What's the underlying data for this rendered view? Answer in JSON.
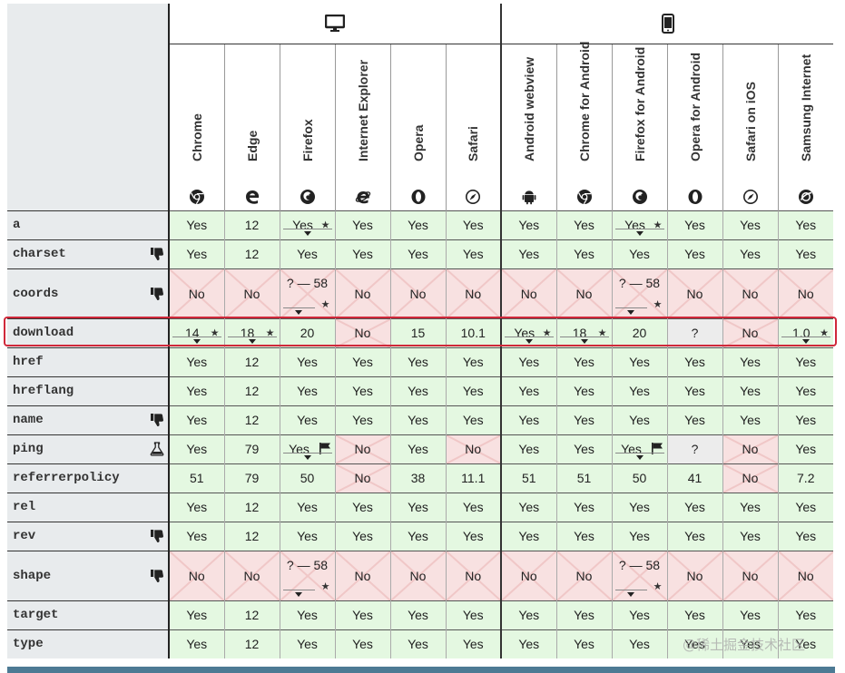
{
  "platforms": [
    {
      "name": "desktop-icon"
    },
    {
      "name": "mobile-icon"
    }
  ],
  "browsers": [
    {
      "label": "Chrome",
      "icon": "chrome-icon"
    },
    {
      "label": "Edge",
      "icon": "edge-icon"
    },
    {
      "label": "Firefox",
      "icon": "firefox-icon"
    },
    {
      "label": "Internet Explorer",
      "icon": "ie-icon"
    },
    {
      "label": "Opera",
      "icon": "opera-icon"
    },
    {
      "label": "Safari",
      "icon": "safari-icon"
    },
    {
      "label": "Android webview",
      "icon": "android-icon"
    },
    {
      "label": "Chrome for Android",
      "icon": "chrome-icon"
    },
    {
      "label": "Firefox for Android",
      "icon": "firefox-icon"
    },
    {
      "label": "Opera for Android",
      "icon": "opera-icon"
    },
    {
      "label": "Safari on iOS",
      "icon": "safari-icon"
    },
    {
      "label": "Samsung Internet",
      "icon": "samsung-icon"
    }
  ],
  "rows": [
    {
      "feature": "a",
      "icon": "",
      "cells": [
        {
          "v": "Yes",
          "s": "yes"
        },
        {
          "v": "12",
          "s": "yes"
        },
        {
          "v": "Yes",
          "s": "yes",
          "star": true,
          "notes": true
        },
        {
          "v": "Yes",
          "s": "yes"
        },
        {
          "v": "Yes",
          "s": "yes"
        },
        {
          "v": "Yes",
          "s": "yes"
        },
        {
          "v": "Yes",
          "s": "yes"
        },
        {
          "v": "Yes",
          "s": "yes"
        },
        {
          "v": "Yes",
          "s": "yes",
          "star": true,
          "notes": true
        },
        {
          "v": "Yes",
          "s": "yes"
        },
        {
          "v": "Yes",
          "s": "yes"
        },
        {
          "v": "Yes",
          "s": "yes"
        }
      ]
    },
    {
      "feature": "charset",
      "icon": "thumbs-down-icon",
      "cells": [
        {
          "v": "Yes",
          "s": "yes"
        },
        {
          "v": "12",
          "s": "yes"
        },
        {
          "v": "Yes",
          "s": "yes"
        },
        {
          "v": "Yes",
          "s": "yes"
        },
        {
          "v": "Yes",
          "s": "yes"
        },
        {
          "v": "Yes",
          "s": "yes"
        },
        {
          "v": "Yes",
          "s": "yes"
        },
        {
          "v": "Yes",
          "s": "yes"
        },
        {
          "v": "Yes",
          "s": "yes"
        },
        {
          "v": "Yes",
          "s": "yes"
        },
        {
          "v": "Yes",
          "s": "yes"
        },
        {
          "v": "Yes",
          "s": "yes"
        }
      ]
    },
    {
      "feature": "coords",
      "icon": "thumbs-down-icon",
      "tall": true,
      "cells": [
        {
          "v": "No",
          "s": "no"
        },
        {
          "v": "No",
          "s": "no"
        },
        {
          "v": "? — 58",
          "s": "no",
          "star": true,
          "notes": true,
          "top": true
        },
        {
          "v": "No",
          "s": "no"
        },
        {
          "v": "No",
          "s": "no"
        },
        {
          "v": "No",
          "s": "no"
        },
        {
          "v": "No",
          "s": "no"
        },
        {
          "v": "No",
          "s": "no"
        },
        {
          "v": "? — 58",
          "s": "no",
          "star": true,
          "notes": true,
          "top": true
        },
        {
          "v": "No",
          "s": "no"
        },
        {
          "v": "No",
          "s": "no"
        },
        {
          "v": "No",
          "s": "no"
        }
      ]
    },
    {
      "feature": "download",
      "icon": "",
      "cells": [
        {
          "v": "14",
          "s": "yes",
          "star": true,
          "notes": true
        },
        {
          "v": "18",
          "s": "yes",
          "star": true,
          "notes": true
        },
        {
          "v": "20",
          "s": "yes"
        },
        {
          "v": "No",
          "s": "no"
        },
        {
          "v": "15",
          "s": "yes"
        },
        {
          "v": "10.1",
          "s": "yes"
        },
        {
          "v": "Yes",
          "s": "yes",
          "star": true,
          "notes": true
        },
        {
          "v": "18",
          "s": "yes",
          "star": true,
          "notes": true
        },
        {
          "v": "20",
          "s": "yes"
        },
        {
          "v": "?",
          "s": "unk"
        },
        {
          "v": "No",
          "s": "no"
        },
        {
          "v": "1.0",
          "s": "yes",
          "star": true,
          "notes": true
        }
      ]
    },
    {
      "feature": "href",
      "icon": "",
      "cells": [
        {
          "v": "Yes",
          "s": "yes"
        },
        {
          "v": "12",
          "s": "yes"
        },
        {
          "v": "Yes",
          "s": "yes"
        },
        {
          "v": "Yes",
          "s": "yes"
        },
        {
          "v": "Yes",
          "s": "yes"
        },
        {
          "v": "Yes",
          "s": "yes"
        },
        {
          "v": "Yes",
          "s": "yes"
        },
        {
          "v": "Yes",
          "s": "yes"
        },
        {
          "v": "Yes",
          "s": "yes"
        },
        {
          "v": "Yes",
          "s": "yes"
        },
        {
          "v": "Yes",
          "s": "yes"
        },
        {
          "v": "Yes",
          "s": "yes"
        }
      ]
    },
    {
      "feature": "hreflang",
      "icon": "",
      "cells": [
        {
          "v": "Yes",
          "s": "yes"
        },
        {
          "v": "12",
          "s": "yes"
        },
        {
          "v": "Yes",
          "s": "yes"
        },
        {
          "v": "Yes",
          "s": "yes"
        },
        {
          "v": "Yes",
          "s": "yes"
        },
        {
          "v": "Yes",
          "s": "yes"
        },
        {
          "v": "Yes",
          "s": "yes"
        },
        {
          "v": "Yes",
          "s": "yes"
        },
        {
          "v": "Yes",
          "s": "yes"
        },
        {
          "v": "Yes",
          "s": "yes"
        },
        {
          "v": "Yes",
          "s": "yes"
        },
        {
          "v": "Yes",
          "s": "yes"
        }
      ]
    },
    {
      "feature": "name",
      "icon": "thumbs-down-icon",
      "cells": [
        {
          "v": "Yes",
          "s": "yes"
        },
        {
          "v": "12",
          "s": "yes"
        },
        {
          "v": "Yes",
          "s": "yes"
        },
        {
          "v": "Yes",
          "s": "yes"
        },
        {
          "v": "Yes",
          "s": "yes"
        },
        {
          "v": "Yes",
          "s": "yes"
        },
        {
          "v": "Yes",
          "s": "yes"
        },
        {
          "v": "Yes",
          "s": "yes"
        },
        {
          "v": "Yes",
          "s": "yes"
        },
        {
          "v": "Yes",
          "s": "yes"
        },
        {
          "v": "Yes",
          "s": "yes"
        },
        {
          "v": "Yes",
          "s": "yes"
        }
      ]
    },
    {
      "feature": "ping",
      "icon": "flask-icon",
      "cells": [
        {
          "v": "Yes",
          "s": "yes"
        },
        {
          "v": "79",
          "s": "yes"
        },
        {
          "v": "Yes",
          "s": "yes",
          "flag": true,
          "notes": true
        },
        {
          "v": "No",
          "s": "no"
        },
        {
          "v": "Yes",
          "s": "yes"
        },
        {
          "v": "No",
          "s": "no"
        },
        {
          "v": "Yes",
          "s": "yes"
        },
        {
          "v": "Yes",
          "s": "yes"
        },
        {
          "v": "Yes",
          "s": "yes",
          "flag": true,
          "notes": true
        },
        {
          "v": "?",
          "s": "unk"
        },
        {
          "v": "No",
          "s": "no"
        },
        {
          "v": "Yes",
          "s": "yes"
        }
      ]
    },
    {
      "feature": "referrerpolicy",
      "icon": "",
      "cells": [
        {
          "v": "51",
          "s": "yes"
        },
        {
          "v": "79",
          "s": "yes"
        },
        {
          "v": "50",
          "s": "yes"
        },
        {
          "v": "No",
          "s": "no"
        },
        {
          "v": "38",
          "s": "yes"
        },
        {
          "v": "11.1",
          "s": "yes"
        },
        {
          "v": "51",
          "s": "yes"
        },
        {
          "v": "51",
          "s": "yes"
        },
        {
          "v": "50",
          "s": "yes"
        },
        {
          "v": "41",
          "s": "yes"
        },
        {
          "v": "No",
          "s": "no"
        },
        {
          "v": "7.2",
          "s": "yes"
        }
      ]
    },
    {
      "feature": "rel",
      "icon": "",
      "cells": [
        {
          "v": "Yes",
          "s": "yes"
        },
        {
          "v": "12",
          "s": "yes"
        },
        {
          "v": "Yes",
          "s": "yes"
        },
        {
          "v": "Yes",
          "s": "yes"
        },
        {
          "v": "Yes",
          "s": "yes"
        },
        {
          "v": "Yes",
          "s": "yes"
        },
        {
          "v": "Yes",
          "s": "yes"
        },
        {
          "v": "Yes",
          "s": "yes"
        },
        {
          "v": "Yes",
          "s": "yes"
        },
        {
          "v": "Yes",
          "s": "yes"
        },
        {
          "v": "Yes",
          "s": "yes"
        },
        {
          "v": "Yes",
          "s": "yes"
        }
      ]
    },
    {
      "feature": "rev",
      "icon": "thumbs-down-icon",
      "cells": [
        {
          "v": "Yes",
          "s": "yes"
        },
        {
          "v": "12",
          "s": "yes"
        },
        {
          "v": "Yes",
          "s": "yes"
        },
        {
          "v": "Yes",
          "s": "yes"
        },
        {
          "v": "Yes",
          "s": "yes"
        },
        {
          "v": "Yes",
          "s": "yes"
        },
        {
          "v": "Yes",
          "s": "yes"
        },
        {
          "v": "Yes",
          "s": "yes"
        },
        {
          "v": "Yes",
          "s": "yes"
        },
        {
          "v": "Yes",
          "s": "yes"
        },
        {
          "v": "Yes",
          "s": "yes"
        },
        {
          "v": "Yes",
          "s": "yes"
        }
      ]
    },
    {
      "feature": "shape",
      "icon": "thumbs-down-icon",
      "tall": true,
      "cells": [
        {
          "v": "No",
          "s": "no"
        },
        {
          "v": "No",
          "s": "no"
        },
        {
          "v": "? — 58",
          "s": "no",
          "star": true,
          "notes": true,
          "top": true
        },
        {
          "v": "No",
          "s": "no"
        },
        {
          "v": "No",
          "s": "no"
        },
        {
          "v": "No",
          "s": "no"
        },
        {
          "v": "No",
          "s": "no"
        },
        {
          "v": "No",
          "s": "no"
        },
        {
          "v": "? — 58",
          "s": "no",
          "star": true,
          "notes": true,
          "top": true
        },
        {
          "v": "No",
          "s": "no"
        },
        {
          "v": "No",
          "s": "no"
        },
        {
          "v": "No",
          "s": "no"
        }
      ]
    },
    {
      "feature": "target",
      "icon": "",
      "cells": [
        {
          "v": "Yes",
          "s": "yes"
        },
        {
          "v": "12",
          "s": "yes"
        },
        {
          "v": "Yes",
          "s": "yes"
        },
        {
          "v": "Yes",
          "s": "yes"
        },
        {
          "v": "Yes",
          "s": "yes"
        },
        {
          "v": "Yes",
          "s": "yes"
        },
        {
          "v": "Yes",
          "s": "yes"
        },
        {
          "v": "Yes",
          "s": "yes"
        },
        {
          "v": "Yes",
          "s": "yes"
        },
        {
          "v": "Yes",
          "s": "yes"
        },
        {
          "v": "Yes",
          "s": "yes"
        },
        {
          "v": "Yes",
          "s": "yes"
        }
      ]
    },
    {
      "feature": "type",
      "icon": "",
      "cells": [
        {
          "v": "Yes",
          "s": "yes"
        },
        {
          "v": "12",
          "s": "yes"
        },
        {
          "v": "Yes",
          "s": "yes"
        },
        {
          "v": "Yes",
          "s": "yes"
        },
        {
          "v": "Yes",
          "s": "yes"
        },
        {
          "v": "Yes",
          "s": "yes"
        },
        {
          "v": "Yes",
          "s": "yes"
        },
        {
          "v": "Yes",
          "s": "yes"
        },
        {
          "v": "Yes",
          "s": "yes"
        },
        {
          "v": "Yes",
          "s": "yes"
        },
        {
          "v": "Yes",
          "s": "yes"
        },
        {
          "v": "Yes",
          "s": "yes"
        }
      ]
    }
  ],
  "highlighted_row": "download",
  "watermark": "@稀土掘金技术社区",
  "colors": {
    "yes": "#e4f8e1",
    "no": "#f8e1e1",
    "unknown": "#ececec",
    "highlight": "#d0283a",
    "bar": "#4d7a94"
  }
}
